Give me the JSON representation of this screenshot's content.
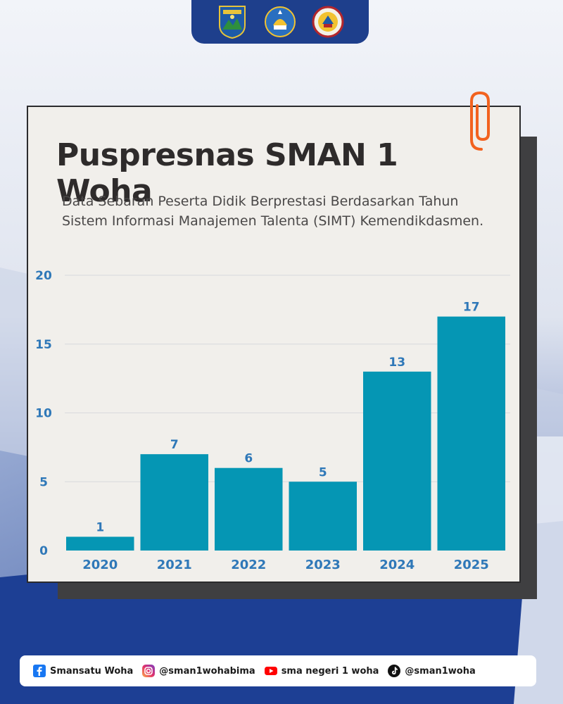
{
  "colors": {
    "bar": "#0596b4",
    "label": "#2f78b8",
    "grid": "#d8d9dc",
    "accent": "#f2621f",
    "navy": "#1e3f8c"
  },
  "header": {
    "logos": [
      "provincial-emblem-icon",
      "tut-wuri-handayani-icon",
      "school-emblem-icon"
    ]
  },
  "card": {
    "title": "Puspresnas SMAN 1 Woha",
    "subtitle_line1": "Data Sebaran Peserta Didik Berprestasi Berdasarkan Tahun",
    "subtitle_line2": "Sistem Informasi Manajemen Talenta (SIMT) Kemendikdasmen."
  },
  "chart_data": {
    "type": "bar",
    "title": "Puspresnas SMAN 1 Woha",
    "categories": [
      "2020",
      "2021",
      "2022",
      "2023",
      "2024",
      "2025"
    ],
    "values": [
      1,
      7,
      6,
      5,
      13,
      17
    ],
    "ylim": [
      0,
      20
    ],
    "yticks": [
      0,
      5,
      10,
      15,
      20
    ],
    "grid": true,
    "data_labels": true
  },
  "footer": {
    "items": [
      {
        "icon": "facebook-icon",
        "label": "Smansatu Woha"
      },
      {
        "icon": "instagram-icon",
        "label": "@sman1wohabima"
      },
      {
        "icon": "youtube-icon",
        "label": "sma negeri 1 woha"
      },
      {
        "icon": "tiktok-icon",
        "label": "@sman1woha"
      }
    ]
  }
}
